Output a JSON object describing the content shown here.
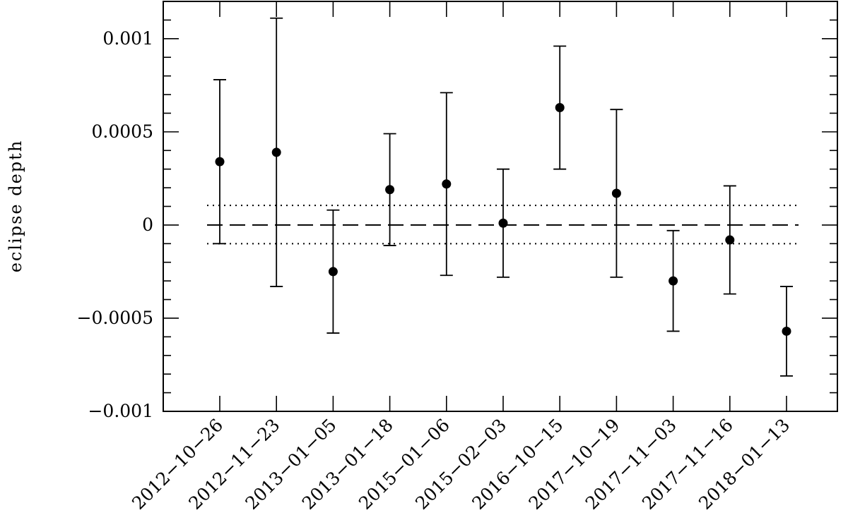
{
  "chart_data": {
    "type": "scatter",
    "title": "",
    "xlabel": "",
    "ylabel": "eclipse depth",
    "ylim": [
      -0.001,
      0.0012
    ],
    "grid": false,
    "legend": "none",
    "y_ticks": [
      -0.001,
      -0.0005,
      0,
      0.0005,
      0.001
    ],
    "y_tick_labels": [
      "−0.001",
      "−0.0005",
      "0",
      "0.0005",
      "0.001"
    ],
    "categories": [
      "2012−10−26",
      "2012−11−23",
      "2013−01−05",
      "2013−01−18",
      "2015−01−06",
      "2015−02−03",
      "2016−10−15",
      "2017−10−19",
      "2017−11−03",
      "2017−11−16",
      "2018−01−13"
    ],
    "series": [
      {
        "values": [
          0.00034,
          0.00039,
          -0.00025,
          0.00019,
          0.00022,
          1e-05,
          0.00063,
          0.00017,
          -0.0003,
          -8e-05,
          -0.00057
        ],
        "err_upper": [
          0.00078,
          0.00111,
          8e-05,
          0.00049,
          0.00071,
          0.0003,
          0.00096,
          0.00062,
          -3e-05,
          0.00021,
          -0.00033
        ],
        "err_lower": [
          -0.0001,
          -0.00033,
          -0.00058,
          -0.00011,
          -0.00027,
          -0.00028,
          0.0003,
          -0.00028,
          -0.00057,
          -0.00037,
          -0.00081
        ]
      }
    ],
    "reference_lines": [
      {
        "style": "dashed",
        "y": 0
      },
      {
        "style": "dotted",
        "y": 0.000105
      },
      {
        "style": "dotted",
        "y": -0.0001
      }
    ],
    "colors": {
      "marks": "#000000",
      "background": "#ffffff"
    }
  }
}
